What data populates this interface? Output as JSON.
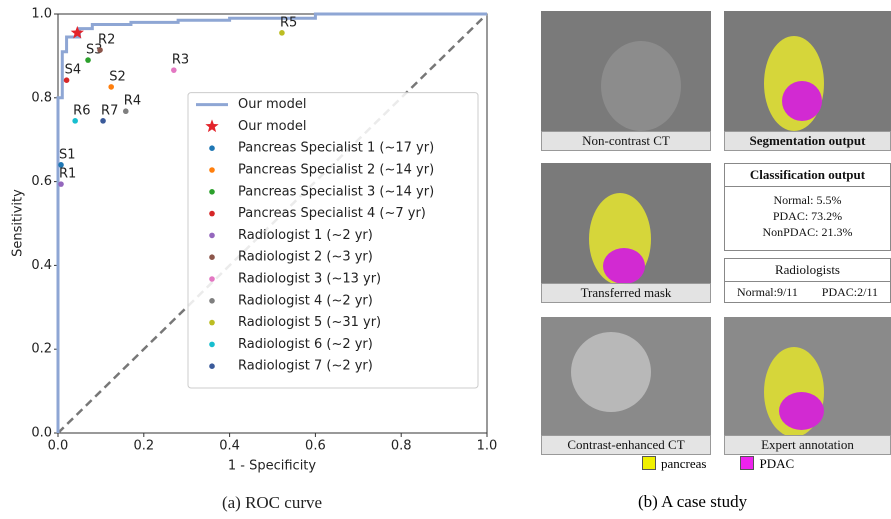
{
  "chart_data": {
    "type": "scatter",
    "xlabel": "1 - Specificity",
    "ylabel": "Sensitivity",
    "xlim": [
      0,
      1
    ],
    "ylim": [
      0,
      1
    ],
    "xticks": [
      {
        "value": 0,
        "label": "0.0"
      },
      0.2,
      0.4,
      0.6,
      0.8,
      {
        "value": 1,
        "label": "1.0"
      }
    ],
    "yticks": [
      {
        "value": 0,
        "label": "0.0"
      },
      0.2,
      0.4,
      0.6,
      0.8,
      {
        "value": 1,
        "label": "1.0"
      }
    ],
    "legend": "lower right",
    "series": [
      {
        "name": "Our model",
        "type": "line",
        "color": "#8ea6d4",
        "x": [
          0,
          0,
          0.01,
          0.01,
          0.02,
          0.02,
          0.05,
          0.05,
          0.08,
          0.08,
          0.17,
          0.17,
          0.28,
          0.28,
          0.4,
          0.4,
          0.6,
          0.6,
          1
        ],
        "y": [
          0,
          0.8,
          0.8,
          0.91,
          0.91,
          0.945,
          0.945,
          0.965,
          0.965,
          0.975,
          0.975,
          0.98,
          0.98,
          0.985,
          0.985,
          0.99,
          0.99,
          1,
          1
        ]
      },
      {
        "name": "Our model",
        "marker": "star",
        "color": "#e3242b",
        "x": [
          0.045
        ],
        "y": [
          0.955
        ]
      },
      {
        "name": "Pancreas Specialist 1 (~17 yr)",
        "label": "S1",
        "color": "#1f77b4",
        "x": [
          0.007
        ],
        "y": [
          0.64
        ]
      },
      {
        "name": "Pancreas Specialist 2 (~14 yr)",
        "label": "S2",
        "color": "#ff7f0e",
        "x": [
          0.124
        ],
        "y": [
          0.826
        ]
      },
      {
        "name": "Pancreas Specialist 3 (~14 yr)",
        "label": "S3",
        "color": "#2ca02c",
        "x": [
          0.07
        ],
        "y": [
          0.89
        ]
      },
      {
        "name": "Pancreas Specialist 4 (~7 yr)",
        "label": "S4",
        "color": "#d62728",
        "x": [
          0.02
        ],
        "y": [
          0.842
        ]
      },
      {
        "name": "Radiologist 1 (~2 yr)",
        "label": "R1",
        "color": "#9467bd",
        "x": [
          0.007
        ],
        "y": [
          0.594
        ]
      },
      {
        "name": "Radiologist 2 (~3 yr)",
        "label": "R2",
        "color": "#8c564b",
        "x": [
          0.098
        ],
        "y": [
          0.914
        ]
      },
      {
        "name": "Radiologist 3 (~13 yr)",
        "label": "R3",
        "color": "#e377c2",
        "x": [
          0.27
        ],
        "y": [
          0.866
        ]
      },
      {
        "name": "Radiologist 4 (~2 yr)",
        "label": "R4",
        "color": "#7f7f7f",
        "x": [
          0.158
        ],
        "y": [
          0.768
        ]
      },
      {
        "name": "Radiologist 5 (~31 yr)",
        "label": "R5",
        "color": "#bcbd22",
        "x": [
          0.522
        ],
        "y": [
          0.955
        ]
      },
      {
        "name": "Radiologist 6 (~2 yr)",
        "label": "R6",
        "color": "#17becf",
        "x": [
          0.04
        ],
        "y": [
          0.745
        ]
      },
      {
        "name": "Radiologist 7 (~2 yr)",
        "label": "R7",
        "color": "#3a5a9a",
        "x": [
          0.105
        ],
        "y": [
          0.745
        ]
      }
    ]
  },
  "captions": {
    "a": "(a) ROC curve",
    "b": "(b) A case study"
  },
  "case_study": {
    "non_contrast": "Non-contrast CT",
    "segmentation": "Segmentation output",
    "transferred": "Transferred mask",
    "classification_title": "Classification output",
    "classification": [
      "Normal: 5.5%",
      "PDAC: 73.2%",
      "NonPDAC: 21.3%"
    ],
    "radiologists_title": "Radiologists",
    "radiologists": [
      "Normal:9/11",
      "PDAC:2/11"
    ],
    "contrast": "Contrast-enhanced CT",
    "expert": "Expert annotation",
    "legend": [
      "pancreas",
      "PDAC"
    ]
  }
}
